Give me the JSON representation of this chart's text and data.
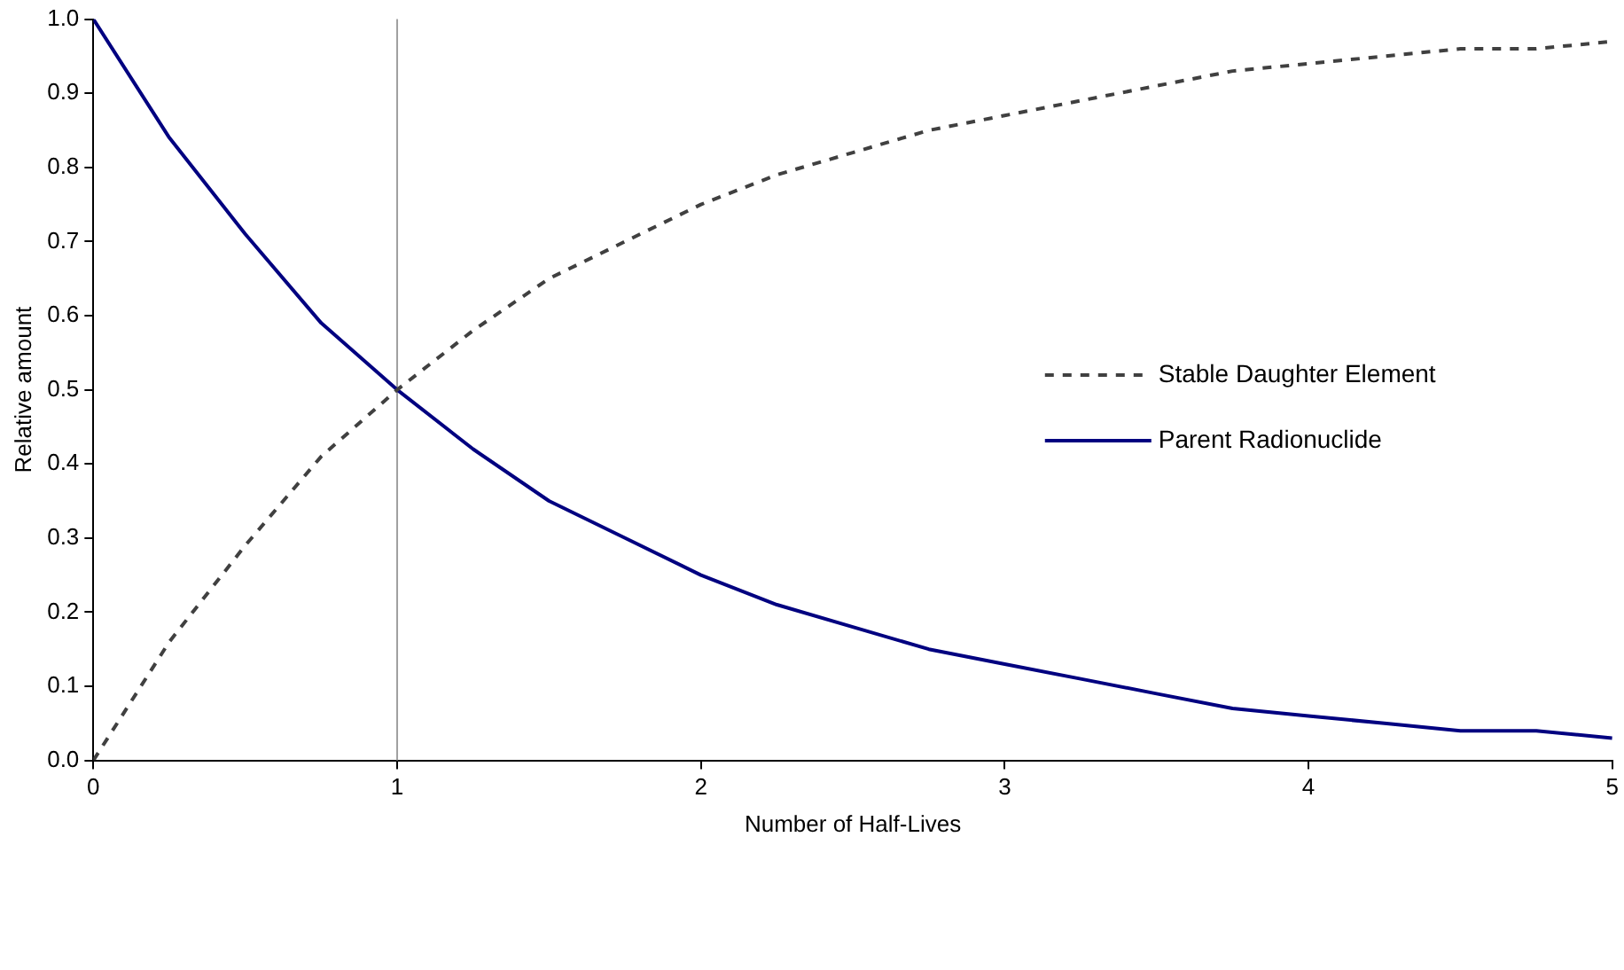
{
  "chart_data": {
    "type": "line",
    "xlabel": "Number of Half-Lives",
    "ylabel": "Relative amount",
    "x": [
      0,
      0.25,
      0.5,
      0.75,
      1,
      1.25,
      1.5,
      1.75,
      2,
      2.25,
      2.5,
      2.75,
      3,
      3.25,
      3.5,
      3.75,
      4,
      4.25,
      4.5,
      4.75,
      5
    ],
    "series": [
      {
        "name": "Stable Daughter Element",
        "color": "#404040",
        "line_style": "dashed",
        "values": [
          0,
          0.16,
          0.29,
          0.41,
          0.5,
          0.58,
          0.65,
          0.7,
          0.75,
          0.79,
          0.82,
          0.85,
          0.87,
          0.89,
          0.91,
          0.93,
          0.94,
          0.95,
          0.96,
          0.96,
          0.97
        ]
      },
      {
        "name": "Parent Radionuclide",
        "color": "#000080",
        "line_style": "solid",
        "values": [
          1,
          0.84,
          0.71,
          0.59,
          0.5,
          0.42,
          0.35,
          0.3,
          0.25,
          0.21,
          0.18,
          0.15,
          0.13,
          0.11,
          0.09,
          0.07,
          0.06,
          0.05,
          0.04,
          0.04,
          0.03
        ]
      }
    ],
    "xlim": [
      0,
      5
    ],
    "xticks": [
      0,
      1,
      2,
      3,
      4,
      5
    ],
    "ylim": [
      0,
      1
    ],
    "yticks": [
      {
        "value": 0,
        "label": "0.0"
      },
      {
        "value": 0.1,
        "label": "0.1"
      },
      {
        "value": 0.2,
        "label": "0.2"
      },
      {
        "value": 0.3,
        "label": "0.3"
      },
      {
        "value": 0.4,
        "label": "0.4"
      },
      {
        "value": 0.5,
        "label": "0.5"
      },
      {
        "value": 0.6,
        "label": "0.6"
      },
      {
        "value": 0.7,
        "label": "0.7"
      },
      {
        "value": 0.8,
        "label": "0.8"
      },
      {
        "value": 0.9,
        "label": "0.9"
      },
      {
        "value": 1,
        "label": "1.0"
      }
    ],
    "ref_lines": [
      {
        "axis": "x",
        "value": 1,
        "color": "#a0a0a0"
      }
    ],
    "grid": false,
    "legend": "right",
    "marker": "none"
  }
}
